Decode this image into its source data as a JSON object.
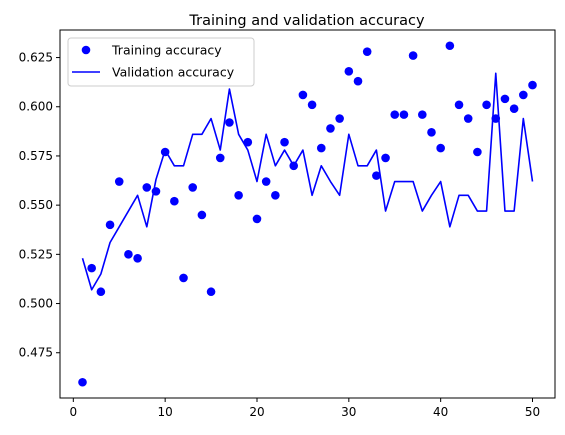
{
  "chart_data": {
    "type": "line",
    "title": "Training and validation accuracy",
    "xlabel": "",
    "ylabel": "",
    "xlim": [
      -1.45,
      52.45
    ],
    "ylim": [
      0.452,
      0.639
    ],
    "xticks": [
      0,
      10,
      20,
      30,
      40,
      50
    ],
    "yticks": [
      0.475,
      0.5,
      0.525,
      0.55,
      0.575,
      0.6,
      0.625
    ],
    "ytick_labels": [
      "0.475",
      "0.500",
      "0.525",
      "0.550",
      "0.575",
      "0.600",
      "0.625"
    ],
    "grid": false,
    "legend_position": "upper-left",
    "series": [
      {
        "name": "Training accuracy",
        "style": "markers",
        "color": "#0000ff",
        "x": [
          1,
          2,
          3,
          4,
          5,
          6,
          7,
          8,
          9,
          10,
          11,
          12,
          13,
          14,
          15,
          16,
          17,
          18,
          19,
          20,
          21,
          22,
          23,
          24,
          25,
          26,
          27,
          28,
          29,
          30,
          31,
          32,
          33,
          34,
          35,
          36,
          37,
          38,
          39,
          40,
          41,
          42,
          43,
          44,
          45,
          46,
          47,
          48,
          49,
          50
        ],
        "values": [
          0.46,
          0.518,
          0.506,
          0.54,
          0.562,
          0.525,
          0.523,
          0.559,
          0.557,
          0.577,
          0.552,
          0.513,
          0.559,
          0.545,
          0.506,
          0.574,
          0.592,
          0.555,
          0.582,
          0.543,
          0.562,
          0.555,
          0.582,
          0.57,
          0.606,
          0.601,
          0.579,
          0.589,
          0.594,
          0.618,
          0.613,
          0.628,
          0.565,
          0.574,
          0.596,
          0.596,
          0.626,
          0.596,
          0.587,
          0.579,
          0.631,
          0.601,
          0.594,
          0.577,
          0.601,
          0.594,
          0.604,
          0.599,
          0.606,
          0.611
        ]
      },
      {
        "name": "Validation accuracy",
        "style": "line",
        "color": "#0000ff",
        "x": [
          1,
          2,
          3,
          4,
          5,
          6,
          7,
          8,
          9,
          10,
          11,
          12,
          13,
          14,
          15,
          16,
          17,
          18,
          19,
          20,
          21,
          22,
          23,
          24,
          25,
          26,
          27,
          28,
          29,
          30,
          31,
          32,
          33,
          34,
          35,
          36,
          37,
          38,
          39,
          40,
          41,
          42,
          43,
          44,
          45,
          46,
          47,
          48,
          49,
          50
        ],
        "values": [
          0.523,
          0.507,
          0.515,
          0.531,
          0.539,
          0.547,
          0.555,
          0.539,
          0.563,
          0.578,
          0.57,
          0.57,
          0.586,
          0.586,
          0.594,
          0.578,
          0.609,
          0.586,
          0.578,
          0.562,
          0.586,
          0.57,
          0.578,
          0.57,
          0.578,
          0.555,
          0.57,
          0.562,
          0.555,
          0.586,
          0.57,
          0.57,
          0.578,
          0.547,
          0.562,
          0.562,
          0.562,
          0.547,
          0.555,
          0.562,
          0.539,
          0.555,
          0.555,
          0.547,
          0.547,
          0.617,
          0.547,
          0.547,
          0.594,
          0.562
        ]
      }
    ]
  }
}
